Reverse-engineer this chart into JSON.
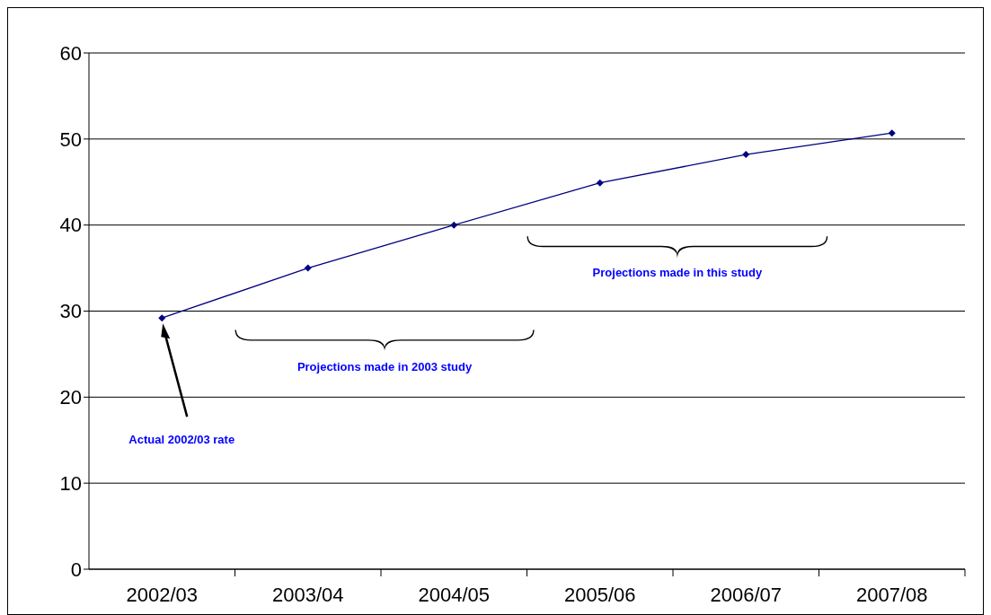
{
  "chart_data": {
    "type": "line",
    "categories": [
      "2002/03",
      "2003/04",
      "2004/05",
      "2005/06",
      "2006/07",
      "2007/08"
    ],
    "series": [
      {
        "color": "#000080",
        "values": [
          29.2,
          35,
          40,
          44.9,
          48.2,
          50.7
        ]
      }
    ],
    "ylim": [
      0,
      60
    ],
    "yticks": [
      0,
      10,
      20,
      30,
      40,
      50,
      60
    ],
    "grid": "y",
    "marker": "diamond",
    "line_style": "solid",
    "annotations": [
      "Actual 2002/03 rate",
      "Projections made in 2003 study",
      "Projections made in this study"
    ]
  }
}
